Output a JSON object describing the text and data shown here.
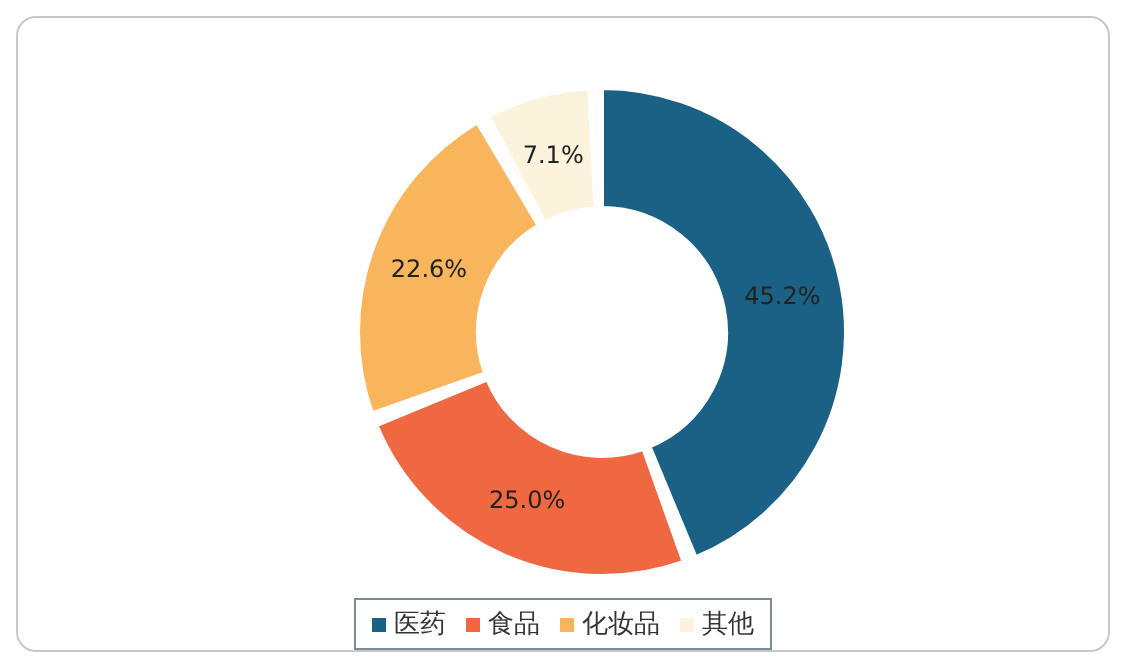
{
  "chart_data": {
    "type": "donut",
    "categories": [
      "医药",
      "食品",
      "化妆品",
      "其他"
    ],
    "values": [
      45.2,
      25.0,
      22.6,
      7.1
    ],
    "colors": [
      "#1b6185",
      "#ef6841",
      "#f9b55c",
      "#fbf3dc"
    ],
    "value_labels": [
      "45.2%",
      "25.0%",
      "22.6%",
      "7.1%"
    ],
    "legend": "bottom"
  }
}
